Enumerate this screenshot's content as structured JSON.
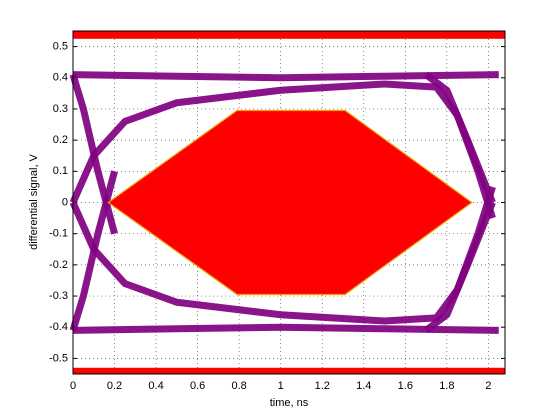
{
  "chart_data": {
    "type": "eye",
    "xlabel": "time, ns",
    "ylabel": "differential signal, V",
    "xlim": [
      0,
      2.08
    ],
    "ylim": [
      -0.55,
      0.55
    ],
    "xticks": [
      0,
      0.2,
      0.4,
      0.6,
      0.8,
      1,
      1.2,
      1.4,
      1.6,
      1.8,
      2
    ],
    "yticks": [
      -0.5,
      -0.4,
      -0.3,
      -0.2,
      -0.1,
      0,
      0.1,
      0.2,
      0.3,
      0.4,
      0.5
    ],
    "grid": true,
    "series": [
      {
        "color": "#800080",
        "x": [
          0,
          0.5,
          1,
          1.5,
          2.05
        ],
        "values": [
          0.41,
          0.405,
          0.4,
          0.405,
          0.41
        ]
      },
      {
        "color": "#800080",
        "x": [
          0,
          0.5,
          1,
          1.5,
          2.05
        ],
        "values": [
          -0.41,
          -0.405,
          -0.4,
          -0.405,
          -0.41
        ]
      },
      {
        "color": "#800080",
        "x": [
          0,
          0.1,
          0.25,
          0.5,
          1,
          1.5,
          1.75,
          1.85,
          1.95,
          2.02
        ],
        "values": [
          0,
          0.15,
          0.26,
          0.32,
          0.36,
          0.38,
          0.37,
          0.28,
          0.1,
          -0.05
        ]
      },
      {
        "color": "#800080",
        "x": [
          0,
          0.1,
          0.25,
          0.5,
          1,
          1.5,
          1.75,
          1.85,
          1.95,
          2.02
        ],
        "values": [
          0,
          -0.15,
          -0.26,
          -0.32,
          -0.36,
          -0.38,
          -0.37,
          -0.28,
          -0.1,
          0.05
        ]
      },
      {
        "color": "#800080",
        "x": [
          0,
          0.05,
          0.12,
          0.2
        ],
        "values": [
          0.41,
          0.3,
          0.1,
          -0.1
        ]
      },
      {
        "color": "#800080",
        "x": [
          0,
          0.05,
          0.12,
          0.2
        ],
        "values": [
          -0.41,
          -0.3,
          -0.1,
          0.1
        ]
      },
      {
        "color": "#800080",
        "x": [
          1.7,
          1.8,
          1.9,
          2.02
        ],
        "values": [
          0.41,
          0.36,
          0.2,
          0
        ]
      },
      {
        "color": "#800080",
        "x": [
          1.7,
          1.8,
          1.9,
          2.02
        ],
        "values": [
          -0.41,
          -0.36,
          -0.2,
          0
        ]
      }
    ],
    "mask": {
      "color": "#ff0000",
      "edge": "#f0a000",
      "x": [
        0.17,
        0.79,
        1.31,
        1.92,
        1.31,
        0.79
      ],
      "y": [
        0,
        0.295,
        0.295,
        0,
        -0.295,
        -0.295
      ]
    },
    "bands": [
      [
        0.525,
        0.55
      ],
      [
        -0.55,
        -0.53
      ]
    ]
  }
}
